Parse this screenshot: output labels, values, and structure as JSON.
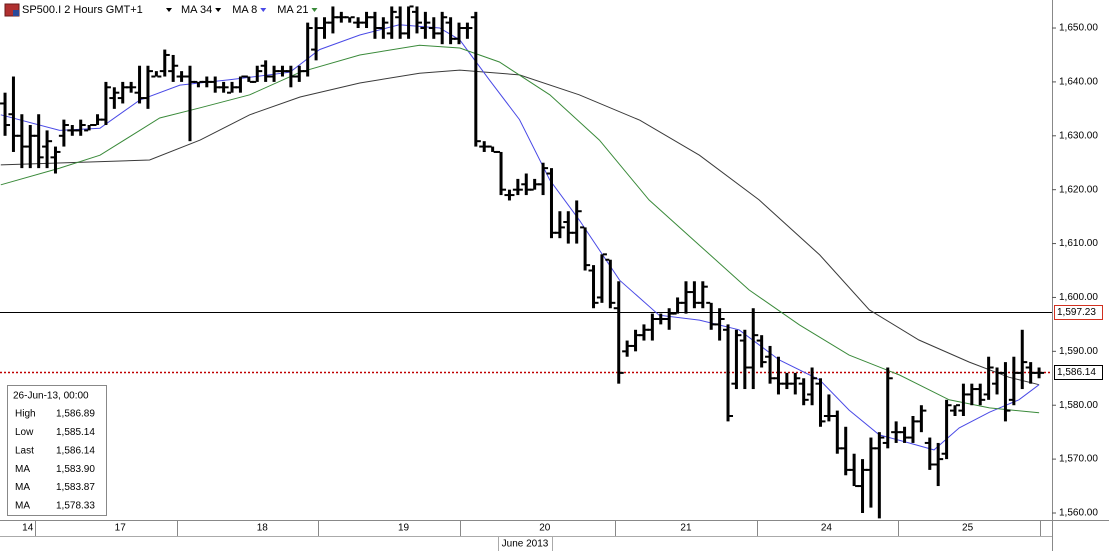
{
  "chart_data": {
    "type": "ohlc",
    "instrument": "SP500.I 2 Hours GMT+1",
    "open": [
      1636,
      1634,
      1630,
      1628,
      1630,
      1628,
      1626,
      1630,
      1631,
      1631,
      1631,
      1632,
      1633,
      1637,
      1637,
      1639,
      1638,
      1637,
      1641,
      1642,
      1642,
      1641,
      1641,
      1640,
      1640,
      1640,
      1639,
      1638,
      1639,
      1641,
      1640,
      1643,
      1641,
      1642,
      1642,
      1641,
      1642,
      1646,
      1650,
      1651,
      1652,
      1652,
      1651,
      1651,
      1652,
      1650,
      1649,
      1652,
      1649,
      1653,
      1650,
      1650,
      1649,
      1651,
      1648,
      1650,
      1652,
      1628,
      1628,
      1627,
      1619,
      1620,
      1621,
      1620,
      1621,
      1623,
      1612,
      1614,
      1612,
      1613,
      1605,
      1600,
      1607,
      1598,
      1590,
      1591,
      1593,
      1594,
      1596,
      1596,
      1597,
      1599,
      1601,
      1599,
      1599,
      1595,
      1594,
      1584,
      1592,
      1587,
      1592,
      1589,
      1585,
      1584,
      1584,
      1584,
      1582,
      1584,
      1578,
      1578,
      1572,
      1568,
      1565,
      1568,
      1572,
      1573,
      1575,
      1575,
      1574,
      1577,
      1573,
      1569,
      1571,
      1579,
      1579,
      1582,
      1583,
      1582,
      1584,
      1586,
      1581,
      1586,
      1587,
      1586
    ],
    "high": [
      1638,
      1641,
      1634,
      1632,
      1634,
      1631,
      1628,
      1633,
      1632,
      1633,
      1632,
      1634,
      1640,
      1639,
      1640,
      1640,
      1643,
      1643,
      1642,
      1646,
      1645,
      1642,
      1643,
      1640,
      1641,
      1641,
      1640,
      1640,
      1641,
      1641,
      1643,
      1644,
      1643,
      1643,
      1643,
      1643,
      1651,
      1652,
      1652,
      1654,
      1653,
      1652,
      1652,
      1653,
      1653,
      1652,
      1654,
      1654,
      1654,
      1654,
      1653,
      1652,
      1653,
      1652,
      1651,
      1651,
      1653,
      1629,
      1628,
      1627,
      1620,
      1622,
      1623,
      1622,
      1625,
      1624,
      1616,
      1616,
      1618,
      1613,
      1606,
      1608,
      1607,
      1603,
      1592,
      1594,
      1595,
      1597,
      1597,
      1598,
      1600,
      1603,
      1603,
      1603,
      1599,
      1598,
      1595,
      1594,
      1594,
      1598,
      1593,
      1591,
      1589,
      1586,
      1586,
      1585,
      1587,
      1585,
      1582,
      1579,
      1576,
      1571,
      1570,
      1574,
      1575,
      1587,
      1577,
      1576,
      1578,
      1580,
      1574,
      1573,
      1581,
      1580,
      1584,
      1584,
      1584,
      1589,
      1587,
      1588,
      1589,
      1594,
      1588,
      1587
    ],
    "low": [
      1630,
      1627,
      1624,
      1624,
      1624,
      1624,
      1623,
      1628,
      1630,
      1630,
      1631,
      1632,
      1632,
      1635,
      1636,
      1638,
      1636,
      1635,
      1641,
      1641,
      1640,
      1640,
      1629,
      1639,
      1639,
      1638,
      1638,
      1638,
      1638,
      1640,
      1640,
      1640,
      1640,
      1641,
      1639,
      1640,
      1641,
      1644,
      1648,
      1649,
      1651,
      1651,
      1650,
      1650,
      1648,
      1648,
      1648,
      1648,
      1648,
      1649,
      1648,
      1648,
      1647,
      1647,
      1647,
      1648,
      1628,
      1627,
      1627,
      1619,
      1618,
      1619,
      1619,
      1620,
      1619,
      1611,
      1611,
      1610,
      1610,
      1605,
      1598,
      1599,
      1598,
      1584,
      1589,
      1590,
      1592,
      1592,
      1595,
      1594,
      1597,
      1597,
      1598,
      1598,
      1594,
      1592,
      1577,
      1583,
      1583,
      1583,
      1587,
      1584,
      1582,
      1583,
      1582,
      1580,
      1580,
      1576,
      1577,
      1571,
      1567,
      1565,
      1560,
      1561,
      1559,
      1572,
      1573,
      1573,
      1573,
      1575,
      1568,
      1565,
      1570,
      1578,
      1578,
      1580,
      1580,
      1581,
      1582,
      1577,
      1580,
      1583,
      1584,
      1585
    ],
    "close": [
      1632,
      1630,
      1628,
      1630,
      1626,
      1629,
      1627,
      1632,
      1631,
      1632,
      1632,
      1633,
      1639,
      1638,
      1639,
      1639,
      1637,
      1642,
      1641,
      1645,
      1643,
      1641,
      1640,
      1640,
      1640,
      1639,
      1639,
      1639,
      1641,
      1640,
      1642,
      1641,
      1642,
      1642,
      1641,
      1642,
      1650,
      1650,
      1651,
      1652,
      1652,
      1652,
      1651,
      1652,
      1650,
      1651,
      1653,
      1649,
      1654,
      1651,
      1651,
      1649,
      1652,
      1648,
      1650,
      1650,
      1629,
      1628,
      1627,
      1620,
      1619,
      1620,
      1620,
      1621,
      1624,
      1612,
      1613,
      1612,
      1616,
      1606,
      1599,
      1608,
      1599,
      1586,
      1591,
      1593,
      1594,
      1596,
      1596,
      1597,
      1599,
      1601,
      1599,
      1602,
      1595,
      1596,
      1578,
      1593,
      1587,
      1593,
      1588,
      1585,
      1584,
      1584,
      1585,
      1581,
      1585,
      1577,
      1578,
      1572,
      1568,
      1565,
      1568,
      1572,
      1574,
      1585,
      1575,
      1574,
      1577,
      1579,
      1569,
      1570,
      1580,
      1580,
      1582,
      1583,
      1581,
      1587,
      1586,
      1579,
      1586,
      1588,
      1586,
      1586
    ],
    "bar_color": "#000000",
    "series": [
      {
        "name": "MA 34",
        "color": "#3a3a3a",
        "x": [
          -0.5,
          17.2,
          23.2,
          29.1,
          35.1,
          42.2,
          49.3,
          54.1,
          61.2,
          68.3,
          75.5,
          82.6,
          89.7,
          96.9,
          102.8,
          108.7,
          114.7,
          119.4,
          123.0
        ],
        "values": [
          1624.6,
          1625.5,
          1629.2,
          1633.9,
          1637.2,
          1639.8,
          1641.6,
          1642.2,
          1641.3,
          1637.6,
          1632.9,
          1626.4,
          1618.1,
          1607.9,
          1597.7,
          1592.1,
          1588.0,
          1585.2,
          1583.8
        ]
      },
      {
        "name": "MA 8",
        "color": "#4a4ae6",
        "x": [
          -0.5,
          6.5,
          11.3,
          16.0,
          20.8,
          26.7,
          33.9,
          37.4,
          42.2,
          46.9,
          51.7,
          54.1,
          57.6,
          61.2,
          64.8,
          68.3,
          73.1,
          77.8,
          82.6,
          87.3,
          92.1,
          96.9,
          100.4,
          104.0,
          107.5,
          110.5,
          113.5,
          117.1,
          120.6,
          123.0
        ],
        "values": [
          1633.9,
          1631.0,
          1631.4,
          1636.6,
          1639.4,
          1640.4,
          1641.8,
          1646.0,
          1648.7,
          1650.6,
          1650.0,
          1647.8,
          1640.4,
          1633.0,
          1621.8,
          1614.4,
          1603.2,
          1596.7,
          1595.8,
          1594.0,
          1588.4,
          1584.7,
          1579.1,
          1574.5,
          1573.0,
          1571.7,
          1575.8,
          1578.7,
          1581.0,
          1583.8
        ]
      },
      {
        "name": "MA 21",
        "color": "#3a8a3a",
        "x": [
          -0.5,
          6.5,
          11.3,
          18.4,
          23.2,
          29.1,
          35.1,
          42.2,
          49.3,
          54.1,
          58.8,
          64.8,
          70.7,
          76.6,
          82.6,
          88.5,
          94.5,
          100.4,
          106.4,
          112.3,
          117.1,
          123.0
        ],
        "values": [
          1620.9,
          1624.0,
          1626.4,
          1633.3,
          1635.2,
          1637.6,
          1641.8,
          1645.0,
          1646.8,
          1646.3,
          1643.7,
          1637.6,
          1629.2,
          1618.1,
          1609.7,
          1601.4,
          1594.9,
          1589.3,
          1585.6,
          1581.0,
          1579.5,
          1578.6
        ]
      }
    ],
    "hlines": [
      {
        "value": 1597.23,
        "label": "1,597.23",
        "color": "#000000",
        "label_color": "#d03020",
        "dash": "none"
      },
      {
        "value": 1586.14,
        "label": "1,586.14",
        "color": "#c00000",
        "label_color": "#000000",
        "dash": "2,2"
      }
    ],
    "xlim": [
      -0.6,
      124.3
    ],
    "ylim": [
      1558.7,
      1655.2
    ],
    "yticks": [
      {
        "value": 1560,
        "label": "1,560.00"
      },
      {
        "value": 1570,
        "label": "1,570.00"
      },
      {
        "value": 1580,
        "label": "1,580.00"
      },
      {
        "value": 1590,
        "label": "1,590.00"
      },
      {
        "value": 1600,
        "label": "1,600.00"
      },
      {
        "value": 1610,
        "label": "1,610.00"
      },
      {
        "value": 1620,
        "label": "1,620.00"
      },
      {
        "value": 1630,
        "label": "1,630.00"
      },
      {
        "value": 1640,
        "label": "1,640.00"
      },
      {
        "value": 1650,
        "label": "1,650.00"
      }
    ],
    "xticks": [
      {
        "value": 2.7,
        "label": "14"
      },
      {
        "value": 13.7,
        "label": "17"
      },
      {
        "value": 30.6,
        "label": "18"
      },
      {
        "value": 47.4,
        "label": "19"
      },
      {
        "value": 64.2,
        "label": "20"
      },
      {
        "value": 81.0,
        "label": "21"
      },
      {
        "value": 97.7,
        "label": "24"
      },
      {
        "value": 114.5,
        "label": "25"
      }
    ],
    "xminorticks": [
      3.6,
      20.4,
      37.2,
      54.1,
      72.6,
      89.4,
      106.2,
      123.1
    ],
    "period_label": "June 2013",
    "info_panel": {
      "date": "26-Jun-13, 00:00",
      "rows": [
        {
          "label": "High",
          "value": "1,586.89"
        },
        {
          "label": "Low",
          "value": "1,585.14"
        },
        {
          "label": "Last",
          "value": "1,586.14"
        },
        {
          "label": "MA",
          "value": "1,583.90"
        },
        {
          "label": "MA",
          "value": "1,583.87"
        },
        {
          "label": "MA",
          "value": "1,578.33"
        }
      ]
    }
  }
}
